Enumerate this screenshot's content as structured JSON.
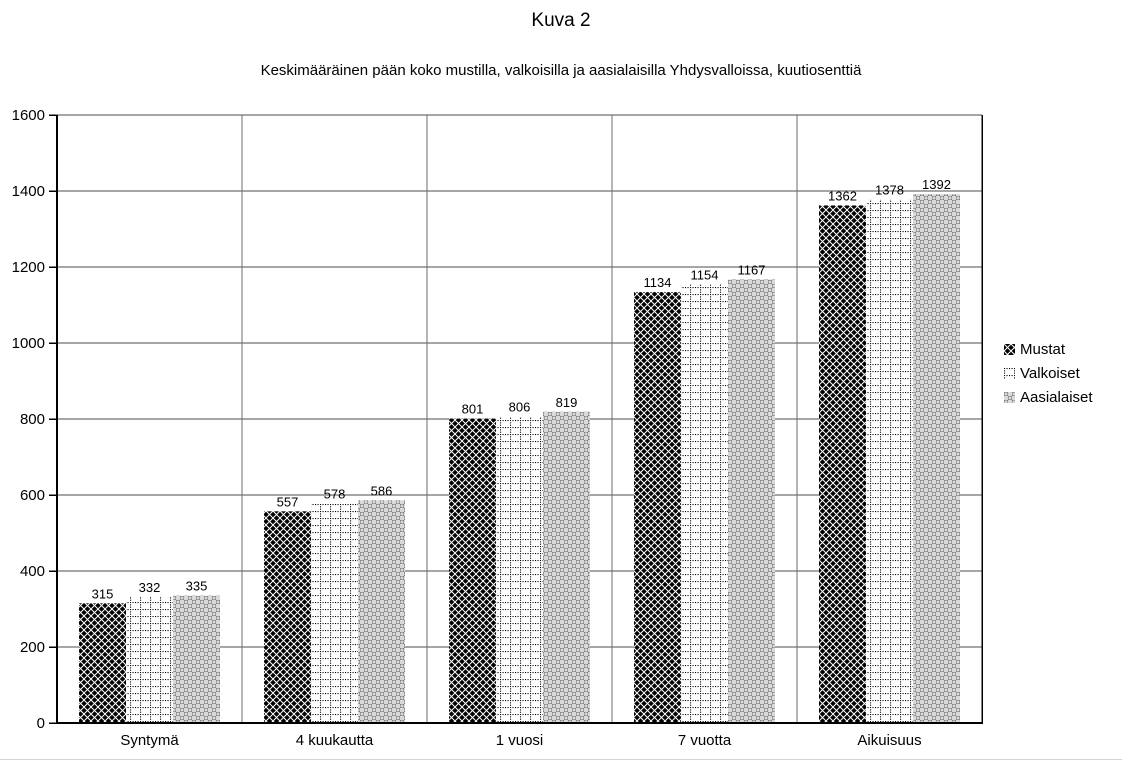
{
  "chart_data": {
    "type": "bar",
    "title": "Kuva 2",
    "subtitle": "Keskimääräinen pään koko mustilla, valkoisilla ja aasialaisilla Yhdysvalloissa, kuutiosenttiä",
    "categories": [
      "Syntymä",
      "4 kuukautta",
      "1 vuosi",
      "7 vuotta",
      "Aikuisuus"
    ],
    "series": [
      {
        "name": "Mustat",
        "pattern": "black-diagonal-crosshatch",
        "values": [
          315,
          557,
          801,
          1134,
          1362
        ]
      },
      {
        "name": "Valkoiset",
        "pattern": "white-dotted-grid",
        "values": [
          332,
          578,
          806,
          1154,
          1378
        ]
      },
      {
        "name": "Aasialaiset",
        "pattern": "gray-checker-dots",
        "values": [
          335,
          586,
          819,
          1167,
          1392
        ]
      }
    ],
    "ylim": [
      0,
      1600
    ],
    "ytick_step": 200,
    "ytick_labels": [
      "0",
      "200",
      "400",
      "600",
      "800",
      "1000",
      "1200",
      "1400",
      "1600"
    ],
    "bar_value_labels": true,
    "grid": "horizontal-gridlines-and-vertical-category-separators",
    "legend_position": "right",
    "colors": {
      "axis": "#000000",
      "gridline": "#4d4d4d",
      "separator": "#6e6e6e",
      "label_text": "#000000",
      "pattern_black": "#000000",
      "pattern_white": "#ffffff",
      "pattern_gray_light": "#d9d9d9",
      "pattern_gray_dark": "#7f7f7f",
      "page_bottom_edge": "#d4d4d4"
    }
  }
}
